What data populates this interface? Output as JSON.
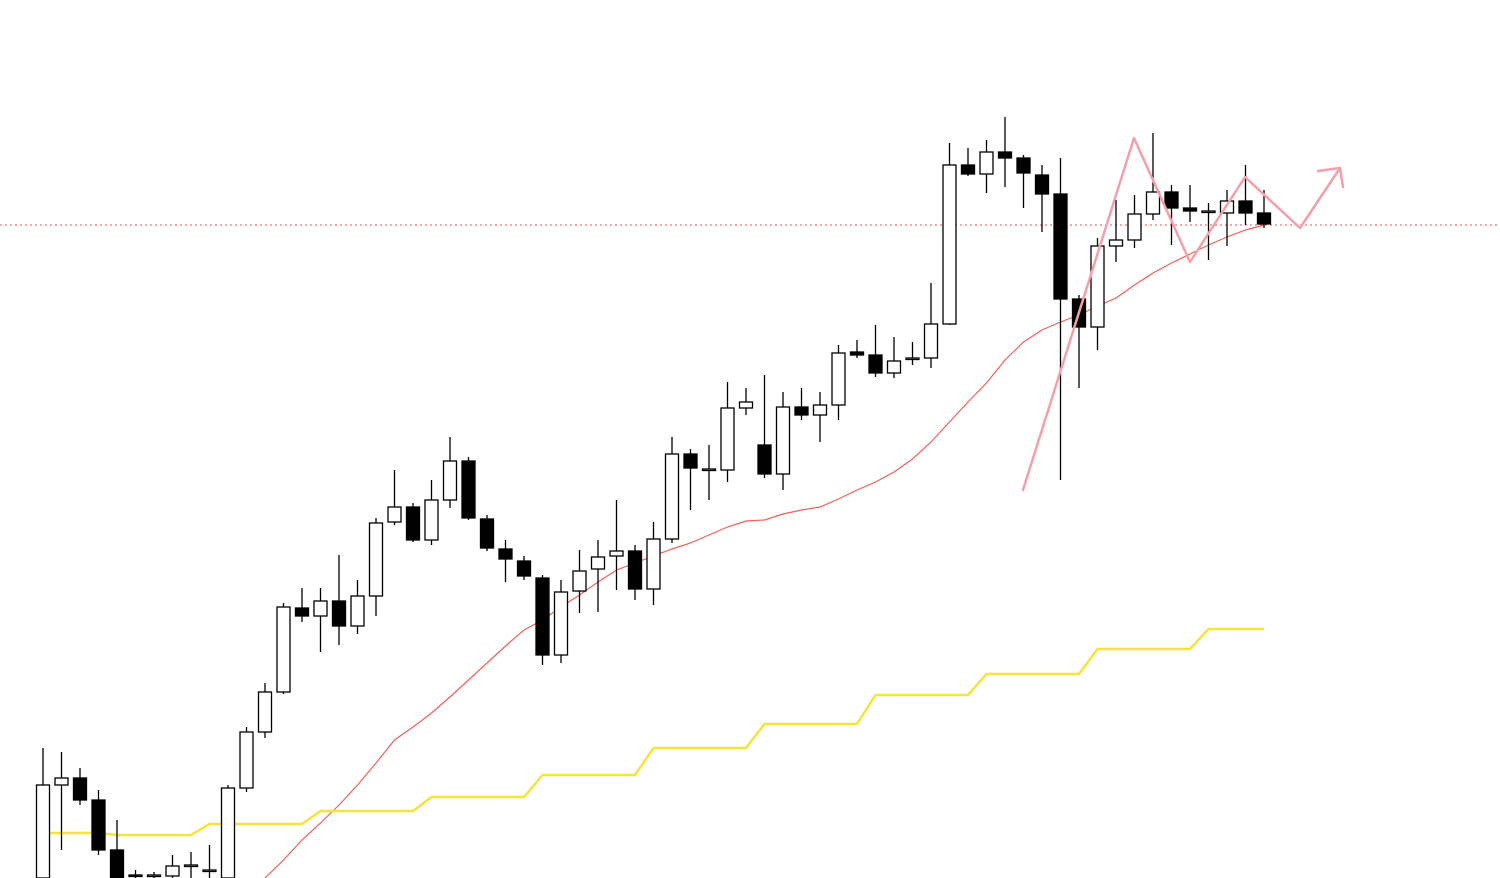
{
  "chart_data": {
    "type": "candlestick",
    "ylim": [
      0,
      878
    ],
    "up_color": "#ffffff",
    "down_color": "#000000",
    "wick_color": "#000000",
    "candles": {
      "open": [
        0,
        93,
        100,
        78,
        28,
        3,
        2,
        2,
        13,
        8,
        0,
        90,
        146,
        186,
        270,
        262,
        277,
        252,
        282,
        356,
        371,
        338,
        378,
        417,
        359,
        329,
        317,
        300,
        223,
        287,
        309,
        322,
        327,
        289,
        339,
        424,
        409,
        408,
        470,
        433,
        404,
        471,
        463,
        473,
        526,
        523,
        505,
        520,
        520,
        554,
        713,
        704,
        726,
        720,
        703,
        684,
        579,
        551,
        632,
        638,
        664,
        686,
        670,
        667,
        665,
        677,
        665
      ],
      "high": [
        130,
        126,
        110,
        88,
        58,
        8,
        6,
        23,
        26,
        33,
        93,
        151,
        195,
        275,
        290,
        290,
        323,
        298,
        360,
        408,
        375,
        398,
        441,
        421,
        363,
        338,
        322,
        303,
        298,
        328,
        338,
        378,
        333,
        356,
        441,
        429,
        433,
        496,
        490,
        503,
        486,
        490,
        486,
        533,
        538,
        553,
        541,
        536,
        595,
        735,
        730,
        738,
        761,
        723,
        713,
        720,
        583,
        640,
        678,
        683,
        745,
        693,
        693,
        675,
        688,
        713,
        688
      ],
      "low": [
        0,
        28,
        73,
        23,
        0,
        0,
        0,
        0,
        0,
        0,
        0,
        86,
        140,
        184,
        256,
        226,
        233,
        244,
        262,
        353,
        336,
        333,
        370,
        358,
        327,
        296,
        298,
        213,
        215,
        265,
        266,
        288,
        278,
        273,
        335,
        368,
        378,
        396,
        463,
        400,
        388,
        458,
        436,
        458,
        520,
        501,
        500,
        513,
        510,
        553,
        702,
        685,
        691,
        670,
        646,
        398,
        490,
        528,
        616,
        630,
        658,
        633,
        656,
        618,
        632,
        653,
        650
      ],
      "close": [
        93,
        100,
        78,
        28,
        0,
        2,
        3,
        12,
        13,
        8,
        90,
        146,
        186,
        271,
        262,
        277,
        252,
        282,
        355,
        371,
        338,
        378,
        417,
        360,
        330,
        319,
        302,
        223,
        286,
        307,
        321,
        327,
        289,
        339,
        424,
        410,
        409,
        470,
        476,
        404,
        471,
        463,
        473,
        525,
        523,
        505,
        517,
        520,
        554,
        713,
        704,
        726,
        720,
        705,
        684,
        579,
        551,
        632,
        638,
        664,
        686,
        670,
        667,
        667,
        677,
        665,
        654
      ]
    },
    "lines": [
      {
        "color": "#f0605a",
        "values": [
          null,
          null,
          null,
          null,
          null,
          null,
          null,
          null,
          null,
          null,
          null,
          null,
          0,
          18,
          38,
          55,
          73,
          93,
          115,
          138,
          151,
          165,
          181,
          198,
          215,
          232,
          248,
          258,
          271,
          283,
          296,
          308,
          315,
          322,
          329,
          335,
          343,
          351,
          357,
          358,
          364,
          368,
          371,
          379,
          388,
          396,
          406,
          419,
          436,
          456,
          476,
          495,
          518,
          536,
          548,
          556,
          563,
          572,
          580,
          593,
          605,
          615,
          624,
          633,
          641,
          648,
          653
        ]
      },
      {
        "color": "#f5e43a",
        "values": [
          45,
          45,
          45,
          45,
          43,
          43,
          43,
          43,
          43,
          54,
          54,
          54,
          54,
          54,
          54,
          67,
          67,
          67,
          67,
          67,
          67,
          81,
          81,
          81,
          81,
          81,
          81,
          103,
          103,
          103,
          103,
          103,
          103,
          130,
          130,
          130,
          130,
          130,
          130,
          154,
          154,
          154,
          154,
          154,
          154,
          183,
          183,
          183,
          183,
          183,
          183,
          204,
          204,
          204,
          204,
          204,
          204,
          229,
          229,
          229,
          229,
          229,
          229,
          249,
          249,
          249,
          249
        ]
      }
    ],
    "hline": {
      "value": 653,
      "color": "#e05050"
    }
  }
}
